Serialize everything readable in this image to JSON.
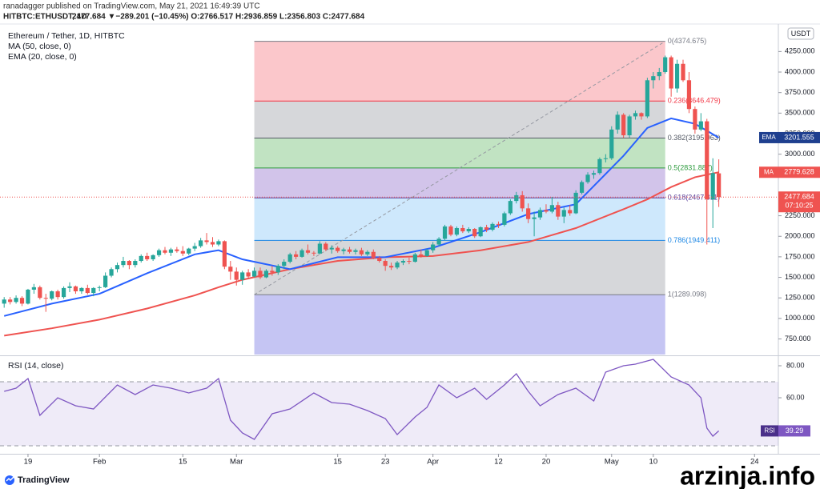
{
  "chart_data": {
    "type": "candlestick",
    "published": "ranadagger published on TradingView.com, May 21, 2021 16:49:39 UTC",
    "symbol": "HITBTC:ETHUSDT, 1D",
    "quote_line": "2477.684 ▼−289.201 (−10.45%) O:2766.517 H:2936.859 L:2356.803 C:2477.684",
    "title": "Ethereum / Tether, 1D, HITBTC",
    "currency": "USDT",
    "countdown": "07:10:25",
    "up_color": "#26a69a",
    "down_color": "#ef5350",
    "xlim": [
      -0.7,
      130
    ],
    "xticks": [
      {
        "value": 4,
        "label": "19"
      },
      {
        "value": 16,
        "label": "Feb"
      },
      {
        "value": 30,
        "label": "15"
      },
      {
        "value": 39,
        "label": "Mar"
      },
      {
        "value": 56,
        "label": "15"
      },
      {
        "value": 64,
        "label": "23"
      },
      {
        "value": 72,
        "label": "Apr"
      },
      {
        "value": 83,
        "label": "12"
      },
      {
        "value": 91,
        "label": "20"
      },
      {
        "value": 102,
        "label": "May"
      },
      {
        "value": 109,
        "label": "10"
      },
      {
        "value": 126,
        "label": "24"
      }
    ],
    "ylim": [
      560,
      4585
    ],
    "yticks": [
      {
        "value": 750,
        "label": "750.000"
      },
      {
        "value": 1000,
        "label": "1000.000"
      },
      {
        "value": 1250,
        "label": "1250.000"
      },
      {
        "value": 1500,
        "label": "1500.000"
      },
      {
        "value": 1750,
        "label": "1750.000"
      },
      {
        "value": 2000,
        "label": "2000.000"
      },
      {
        "value": 2250,
        "label": "2250.000"
      },
      {
        "value": 2500,
        "label": "2500.000"
      },
      {
        "value": 2750,
        "label": "2750.000"
      },
      {
        "value": 3000,
        "label": "3000.000"
      },
      {
        "value": 3250,
        "label": "3250.000"
      },
      {
        "value": 3500,
        "label": "3500.000"
      },
      {
        "value": 3750,
        "label": "3750.000"
      },
      {
        "value": 4000,
        "label": "4000.000"
      },
      {
        "value": 4250,
        "label": "4250.000"
      }
    ],
    "ohlc": [
      [
        1180,
        1260,
        1130,
        1230
      ],
      [
        1230,
        1260,
        1170,
        1200
      ],
      [
        1200,
        1280,
        1180,
        1250
      ],
      [
        1250,
        1270,
        1150,
        1180
      ],
      [
        1180,
        1360,
        1170,
        1350
      ],
      [
        1350,
        1420,
        1300,
        1380
      ],
      [
        1380,
        1400,
        1230,
        1250
      ],
      [
        1250,
        1300,
        1080,
        1240
      ],
      [
        1240,
        1340,
        1220,
        1330
      ],
      [
        1330,
        1350,
        1230,
        1260
      ],
      [
        1260,
        1390,
        1240,
        1370
      ],
      [
        1370,
        1440,
        1320,
        1390
      ],
      [
        1390,
        1400,
        1300,
        1330
      ],
      [
        1330,
        1380,
        1300,
        1370
      ],
      [
        1370,
        1410,
        1290,
        1310
      ],
      [
        1310,
        1380,
        1270,
        1370
      ],
      [
        1370,
        1400,
        1330,
        1380
      ],
      [
        1380,
        1560,
        1370,
        1520
      ],
      [
        1520,
        1620,
        1500,
        1600
      ],
      [
        1600,
        1680,
        1560,
        1650
      ],
      [
        1650,
        1750,
        1620,
        1700
      ],
      [
        1700,
        1710,
        1600,
        1650
      ],
      [
        1650,
        1720,
        1620,
        1700
      ],
      [
        1700,
        1780,
        1680,
        1760
      ],
      [
        1760,
        1800,
        1700,
        1720
      ],
      [
        1720,
        1780,
        1700,
        1770
      ],
      [
        1770,
        1850,
        1750,
        1830
      ],
      [
        1830,
        1870,
        1780,
        1800
      ],
      [
        1800,
        1860,
        1760,
        1840
      ],
      [
        1840,
        1870,
        1800,
        1820
      ],
      [
        1820,
        1880,
        1760,
        1790
      ],
      [
        1790,
        1860,
        1770,
        1850
      ],
      [
        1850,
        1920,
        1820,
        1880
      ],
      [
        1880,
        1980,
        1860,
        1950
      ],
      [
        1950,
        2040,
        1900,
        1930
      ],
      [
        1930,
        1990,
        1870,
        1900
      ],
      [
        1900,
        1960,
        1880,
        1940
      ],
      [
        1940,
        1950,
        1600,
        1630
      ],
      [
        1630,
        1700,
        1470,
        1570
      ],
      [
        1570,
        1620,
        1400,
        1470
      ],
      [
        1470,
        1580,
        1410,
        1560
      ],
      [
        1560,
        1600,
        1480,
        1510
      ],
      [
        1510,
        1620,
        1500,
        1580
      ],
      [
        1580,
        1620,
        1480,
        1500
      ],
      [
        1500,
        1600,
        1490,
        1580
      ],
      [
        1580,
        1640,
        1520,
        1560
      ],
      [
        1560,
        1660,
        1530,
        1640
      ],
      [
        1640,
        1720,
        1600,
        1690
      ],
      [
        1690,
        1800,
        1670,
        1780
      ],
      [
        1780,
        1820,
        1720,
        1750
      ],
      [
        1750,
        1850,
        1740,
        1830
      ],
      [
        1830,
        1900,
        1780,
        1800
      ],
      [
        1800,
        1820,
        1760,
        1790
      ],
      [
        1790,
        1940,
        1780,
        1910
      ],
      [
        1910,
        1930,
        1820,
        1840
      ],
      [
        1840,
        1890,
        1790,
        1860
      ],
      [
        1860,
        1880,
        1800,
        1820
      ],
      [
        1820,
        1860,
        1780,
        1840
      ],
      [
        1840,
        1870,
        1790,
        1810
      ],
      [
        1810,
        1850,
        1780,
        1830
      ],
      [
        1830,
        1860,
        1760,
        1780
      ],
      [
        1780,
        1830,
        1760,
        1810
      ],
      [
        1810,
        1840,
        1720,
        1740
      ],
      [
        1740,
        1760,
        1680,
        1700
      ],
      [
        1700,
        1720,
        1580,
        1640
      ],
      [
        1640,
        1680,
        1590,
        1620
      ],
      [
        1620,
        1700,
        1600,
        1680
      ],
      [
        1680,
        1720,
        1650,
        1700
      ],
      [
        1700,
        1740,
        1660,
        1690
      ],
      [
        1690,
        1800,
        1680,
        1780
      ],
      [
        1780,
        1840,
        1740,
        1760
      ],
      [
        1760,
        1850,
        1750,
        1830
      ],
      [
        1830,
        1930,
        1800,
        1900
      ],
      [
        1900,
        1990,
        1880,
        1970
      ],
      [
        1970,
        2140,
        1950,
        2120
      ],
      [
        2120,
        2140,
        2000,
        2020
      ],
      [
        2020,
        2120,
        2000,
        2100
      ],
      [
        2100,
        2140,
        2040,
        2060
      ],
      [
        2060,
        2110,
        2040,
        2090
      ],
      [
        2090,
        2100,
        1980,
        2000
      ],
      [
        2000,
        2120,
        1990,
        2110
      ],
      [
        2110,
        2140,
        2050,
        2080
      ],
      [
        2080,
        2170,
        2060,
        2150
      ],
      [
        2150,
        2180,
        2100,
        2140
      ],
      [
        2140,
        2300,
        2120,
        2280
      ],
      [
        2280,
        2450,
        2260,
        2430
      ],
      [
        2430,
        2540,
        2400,
        2500
      ],
      [
        2500,
        2550,
        2300,
        2340
      ],
      [
        2340,
        2400,
        2160,
        2210
      ],
      [
        2210,
        2300,
        2000,
        2230
      ],
      [
        2230,
        2350,
        2200,
        2320
      ],
      [
        2320,
        2390,
        2280,
        2300
      ],
      [
        2300,
        2480,
        2280,
        2380
      ],
      [
        2380,
        2420,
        2200,
        2240
      ],
      [
        2240,
        2350,
        2160,
        2320
      ],
      [
        2320,
        2380,
        2250,
        2280
      ],
      [
        2280,
        2560,
        2270,
        2530
      ],
      [
        2530,
        2680,
        2510,
        2660
      ],
      [
        2660,
        2780,
        2640,
        2750
      ],
      [
        2750,
        2800,
        2700,
        2770
      ],
      [
        2770,
        2960,
        2750,
        2940
      ],
      [
        2940,
        3000,
        2900,
        2950
      ],
      [
        2950,
        3340,
        2930,
        3300
      ],
      [
        3300,
        3520,
        3250,
        3480
      ],
      [
        3480,
        3500,
        3200,
        3230
      ],
      [
        3230,
        3480,
        3200,
        3460
      ],
      [
        3460,
        3530,
        3420,
        3500
      ],
      [
        3500,
        3510,
        3420,
        3460
      ],
      [
        3460,
        3930,
        3440,
        3900
      ],
      [
        3900,
        4000,
        3800,
        3950
      ],
      [
        3950,
        4050,
        3900,
        4000
      ],
      [
        4000,
        4200,
        3980,
        4180
      ],
      [
        4180,
        4200,
        3700,
        3800
      ],
      [
        3800,
        4150,
        3750,
        4100
      ],
      [
        4100,
        4150,
        3880,
        3900
      ],
      [
        3900,
        4000,
        3500,
        3550
      ],
      [
        3550,
        3580,
        3250,
        3300
      ],
      [
        3300,
        3500,
        3280,
        3400
      ],
      [
        3400,
        3430,
        1900,
        2450
      ],
      [
        2450,
        2950,
        2100,
        2770
      ],
      [
        2766.517,
        2936.859,
        2356.803,
        2477.684
      ]
    ],
    "series": [
      {
        "name": "MA (50, close, 0)",
        "badge": "MA",
        "color": "#ef5350",
        "x": [
          0,
          8,
          16,
          24,
          32,
          36,
          40,
          48,
          56,
          64,
          72,
          80,
          88,
          96,
          104,
          108,
          112,
          116,
          120
        ],
        "values": [
          790,
          880,
          985,
          1120,
          1280,
          1380,
          1470,
          1600,
          1700,
          1745,
          1760,
          1830,
          1930,
          2100,
          2330,
          2450,
          2600,
          2720,
          2779.628
        ]
      },
      {
        "name": "EMA (20, close, 0)",
        "badge": "EMA",
        "color": "#2962ff",
        "badge_color": "#1e3f8f",
        "x": [
          0,
          8,
          16,
          24,
          32,
          36,
          40,
          48,
          56,
          64,
          72,
          80,
          88,
          96,
          104,
          108,
          112,
          116,
          120
        ],
        "values": [
          1030,
          1180,
          1300,
          1550,
          1780,
          1830,
          1720,
          1600,
          1745,
          1745,
          1860,
          2050,
          2270,
          2390,
          2980,
          3320,
          3436,
          3370,
          3201.555
        ]
      }
    ],
    "fib": {
      "x": [
        42,
        111
      ],
      "levels": [
        {
          "label": "0(4374.675)",
          "value": 4374.675,
          "color": "#787b86",
          "zone": "rgba(242,54,69,0.28)"
        },
        {
          "label": "0.236(3646.479)",
          "value": 3646.479,
          "color": "#f23645",
          "zone": "rgba(120,123,134,0.3)"
        },
        {
          "label": "0.382(3195.963)",
          "value": 3195.963,
          "color": "#555a66",
          "zone": "rgba(76,175,80,0.35)"
        },
        {
          "label": "0.5(2831.887)",
          "value": 2831.887,
          "color": "#2e9b3e",
          "zone": "rgba(126,87,194,0.35)"
        },
        {
          "label": "0.618(2467.811)",
          "value": 2467.811,
          "color": "#5b3f9a",
          "zone": "rgba(33,150,243,0.22)"
        },
        {
          "label": "0.786(1949.411)",
          "value": 1949.411,
          "color": "#1e88e5",
          "zone": "rgba(120,123,134,0.3)"
        },
        {
          "label": "1(1289.098)",
          "value": 1289.098,
          "color": "#787b86",
          "zone": "rgba(80,80,220,0.33)"
        }
      ]
    },
    "rsi": {
      "name": "RSI (14, close)",
      "badge": "RSI",
      "color": "#7e57c2",
      "ylim": [
        25.5,
        84.5
      ],
      "yticks": [
        {
          "value": 60,
          "label": "60.00"
        },
        {
          "value": 80,
          "label": "80.00"
        }
      ],
      "bands": [
        30,
        70
      ],
      "x": [
        0,
        2,
        4,
        6,
        9,
        12,
        15,
        19,
        22,
        25,
        28,
        31,
        34,
        36,
        38,
        40,
        42,
        45,
        48,
        52,
        55,
        58,
        61,
        64,
        66,
        69,
        71,
        73,
        76,
        79,
        81,
        84,
        86,
        88,
        90,
        93,
        96,
        99,
        101,
        104,
        106,
        109,
        112,
        115,
        117,
        118,
        119,
        120
      ],
      "values": [
        64,
        66,
        72,
        49,
        60,
        55,
        53,
        68,
        62,
        68,
        66,
        63,
        66,
        72,
        46,
        38,
        34,
        50,
        53,
        63,
        57,
        56,
        52,
        47,
        37,
        48,
        54,
        68,
        60,
        66,
        59,
        68,
        75,
        64,
        55,
        62,
        66,
        58,
        76,
        80,
        81,
        84,
        73,
        68,
        60,
        41,
        36,
        39.29
      ]
    },
    "footer": {
      "brand": "TradingView",
      "watermark": "arzinja.info"
    }
  }
}
